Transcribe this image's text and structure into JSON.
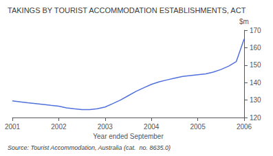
{
  "chart_data": {
    "type": "line",
    "title": "TAKINGS BY TOURIST ACCOMMODATION ESTABLISHMENTS, ACT",
    "xlabel": "Year ended September",
    "ylabel": "$m",
    "source": "Source: Tourist Accommodation, Australia (cat.  no. 8635.0)",
    "x": [
      2001.0,
      2001.17,
      2001.33,
      2001.5,
      2001.67,
      2001.83,
      2002.0,
      2002.17,
      2002.33,
      2002.5,
      2002.67,
      2002.83,
      2003.0,
      2003.17,
      2003.33,
      2003.5,
      2003.67,
      2003.83,
      2004.0,
      2004.17,
      2004.33,
      2004.5,
      2004.67,
      2004.83,
      2005.0,
      2005.17,
      2005.33,
      2005.5,
      2005.67,
      2005.83,
      2006.0
    ],
    "values": [
      129.5,
      129.0,
      128.5,
      128.0,
      127.5,
      127.0,
      126.5,
      125.5,
      125.0,
      124.5,
      124.5,
      125.0,
      126.0,
      128.0,
      130.0,
      132.5,
      135.0,
      137.0,
      139.0,
      140.5,
      141.5,
      142.5,
      143.5,
      144.0,
      144.5,
      145.0,
      146.0,
      147.5,
      149.5,
      152.0,
      165.0
    ],
    "xlim": [
      2001,
      2006
    ],
    "xticks": [
      2001,
      2002,
      2003,
      2004,
      2005,
      2006
    ],
    "ylim": [
      120,
      170
    ],
    "yticks": [
      120,
      130,
      140,
      150,
      160,
      170
    ],
    "grid": false
  }
}
